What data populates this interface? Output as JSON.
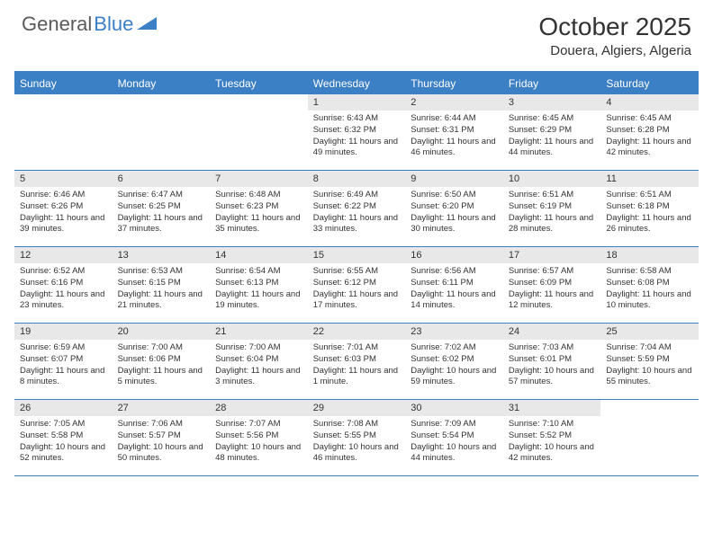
{
  "logo": {
    "part1": "General",
    "part2": "Blue"
  },
  "title": "October 2025",
  "location": "Douera, Algiers, Algeria",
  "day_names": [
    "Sunday",
    "Monday",
    "Tuesday",
    "Wednesday",
    "Thursday",
    "Friday",
    "Saturday"
  ],
  "colors": {
    "header_bg": "#3b7fc4",
    "daynum_bg": "#e8e8e8",
    "text": "#333333",
    "logo_gray": "#5a5a5a"
  },
  "weeks": [
    [
      null,
      null,
      null,
      {
        "n": "1",
        "sr": "6:43 AM",
        "ss": "6:32 PM",
        "dl": "11 hours and 49 minutes."
      },
      {
        "n": "2",
        "sr": "6:44 AM",
        "ss": "6:31 PM",
        "dl": "11 hours and 46 minutes."
      },
      {
        "n": "3",
        "sr": "6:45 AM",
        "ss": "6:29 PM",
        "dl": "11 hours and 44 minutes."
      },
      {
        "n": "4",
        "sr": "6:45 AM",
        "ss": "6:28 PM",
        "dl": "11 hours and 42 minutes."
      }
    ],
    [
      {
        "n": "5",
        "sr": "6:46 AM",
        "ss": "6:26 PM",
        "dl": "11 hours and 39 minutes."
      },
      {
        "n": "6",
        "sr": "6:47 AM",
        "ss": "6:25 PM",
        "dl": "11 hours and 37 minutes."
      },
      {
        "n": "7",
        "sr": "6:48 AM",
        "ss": "6:23 PM",
        "dl": "11 hours and 35 minutes."
      },
      {
        "n": "8",
        "sr": "6:49 AM",
        "ss": "6:22 PM",
        "dl": "11 hours and 33 minutes."
      },
      {
        "n": "9",
        "sr": "6:50 AM",
        "ss": "6:20 PM",
        "dl": "11 hours and 30 minutes."
      },
      {
        "n": "10",
        "sr": "6:51 AM",
        "ss": "6:19 PM",
        "dl": "11 hours and 28 minutes."
      },
      {
        "n": "11",
        "sr": "6:51 AM",
        "ss": "6:18 PM",
        "dl": "11 hours and 26 minutes."
      }
    ],
    [
      {
        "n": "12",
        "sr": "6:52 AM",
        "ss": "6:16 PM",
        "dl": "11 hours and 23 minutes."
      },
      {
        "n": "13",
        "sr": "6:53 AM",
        "ss": "6:15 PM",
        "dl": "11 hours and 21 minutes."
      },
      {
        "n": "14",
        "sr": "6:54 AM",
        "ss": "6:13 PM",
        "dl": "11 hours and 19 minutes."
      },
      {
        "n": "15",
        "sr": "6:55 AM",
        "ss": "6:12 PM",
        "dl": "11 hours and 17 minutes."
      },
      {
        "n": "16",
        "sr": "6:56 AM",
        "ss": "6:11 PM",
        "dl": "11 hours and 14 minutes."
      },
      {
        "n": "17",
        "sr": "6:57 AM",
        "ss": "6:09 PM",
        "dl": "11 hours and 12 minutes."
      },
      {
        "n": "18",
        "sr": "6:58 AM",
        "ss": "6:08 PM",
        "dl": "11 hours and 10 minutes."
      }
    ],
    [
      {
        "n": "19",
        "sr": "6:59 AM",
        "ss": "6:07 PM",
        "dl": "11 hours and 8 minutes."
      },
      {
        "n": "20",
        "sr": "7:00 AM",
        "ss": "6:06 PM",
        "dl": "11 hours and 5 minutes."
      },
      {
        "n": "21",
        "sr": "7:00 AM",
        "ss": "6:04 PM",
        "dl": "11 hours and 3 minutes."
      },
      {
        "n": "22",
        "sr": "7:01 AM",
        "ss": "6:03 PM",
        "dl": "11 hours and 1 minute."
      },
      {
        "n": "23",
        "sr": "7:02 AM",
        "ss": "6:02 PM",
        "dl": "10 hours and 59 minutes."
      },
      {
        "n": "24",
        "sr": "7:03 AM",
        "ss": "6:01 PM",
        "dl": "10 hours and 57 minutes."
      },
      {
        "n": "25",
        "sr": "7:04 AM",
        "ss": "5:59 PM",
        "dl": "10 hours and 55 minutes."
      }
    ],
    [
      {
        "n": "26",
        "sr": "7:05 AM",
        "ss": "5:58 PM",
        "dl": "10 hours and 52 minutes."
      },
      {
        "n": "27",
        "sr": "7:06 AM",
        "ss": "5:57 PM",
        "dl": "10 hours and 50 minutes."
      },
      {
        "n": "28",
        "sr": "7:07 AM",
        "ss": "5:56 PM",
        "dl": "10 hours and 48 minutes."
      },
      {
        "n": "29",
        "sr": "7:08 AM",
        "ss": "5:55 PM",
        "dl": "10 hours and 46 minutes."
      },
      {
        "n": "30",
        "sr": "7:09 AM",
        "ss": "5:54 PM",
        "dl": "10 hours and 44 minutes."
      },
      {
        "n": "31",
        "sr": "7:10 AM",
        "ss": "5:52 PM",
        "dl": "10 hours and 42 minutes."
      },
      null
    ]
  ]
}
